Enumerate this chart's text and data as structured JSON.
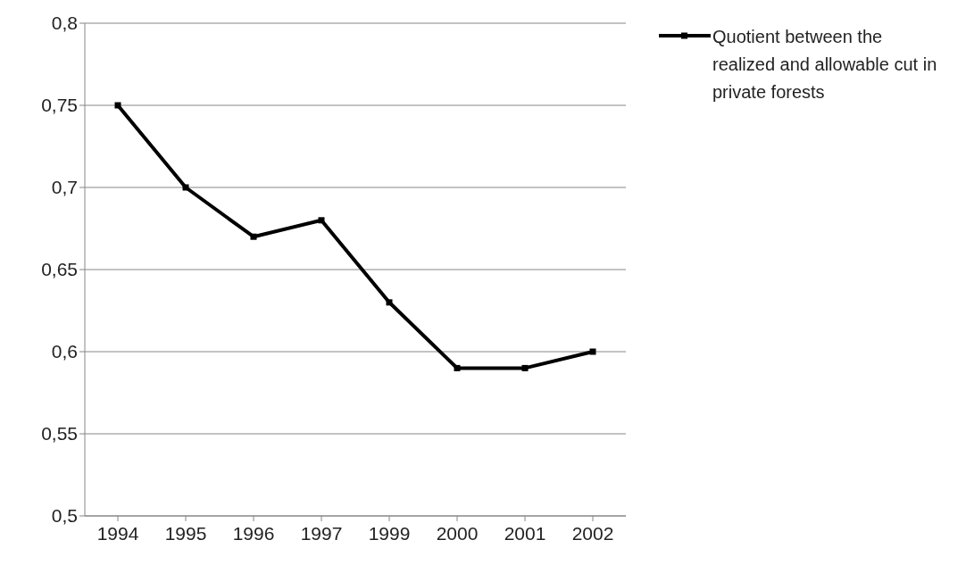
{
  "chart_data": {
    "type": "line",
    "categories": [
      "1994",
      "1995",
      "1996",
      "1997",
      "1999",
      "2000",
      "2001",
      "2002"
    ],
    "series": [
      {
        "name": "Quotient between the realized and allowable cut in private forests",
        "color": "#000000",
        "values": [
          0.75,
          0.7,
          0.67,
          0.68,
          0.63,
          0.59,
          0.59,
          0.6
        ]
      }
    ],
    "ylim": [
      0.5,
      0.8
    ],
    "yticks": [
      {
        "value": 0.5,
        "label": "0,5"
      },
      {
        "value": 0.55,
        "label": "0,55"
      },
      {
        "value": 0.6,
        "label": "0,6"
      },
      {
        "value": 0.65,
        "label": "0,65"
      },
      {
        "value": 0.7,
        "label": "0,7"
      },
      {
        "value": 0.75,
        "label": "0,75"
      },
      {
        "value": 0.8,
        "label": "0,8"
      }
    ],
    "grid": "y",
    "legend": "top right",
    "marker": "square",
    "line_style": "solid"
  }
}
